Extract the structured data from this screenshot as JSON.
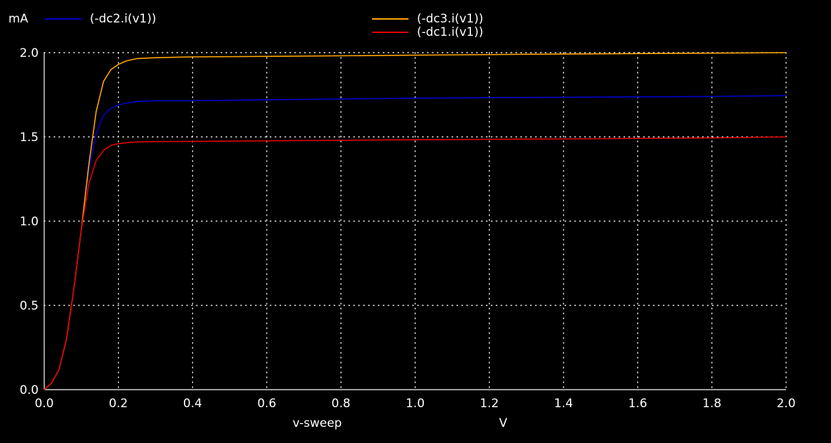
{
  "chart_data": {
    "type": "line",
    "y_unit_label": "mA",
    "xlabel": "v-sweep",
    "x_unit_label": "V",
    "xlim": [
      0.0,
      2.0
    ],
    "ylim": [
      0.0,
      2.0
    ],
    "x_ticks": [
      "0.0",
      "0.2",
      "0.4",
      "0.6",
      "0.8",
      "1.0",
      "1.2",
      "1.4",
      "1.6",
      "1.8",
      "2.0"
    ],
    "y_ticks": [
      "0.0",
      "0.5",
      "1.0",
      "1.5",
      "2.0"
    ],
    "grid": true,
    "background": "#000000",
    "series": [
      {
        "name": "(-dc2.i(v1))",
        "color": "#0000cc",
        "x": [
          0.0,
          0.02,
          0.04,
          0.06,
          0.08,
          0.1,
          0.12,
          0.14,
          0.16,
          0.18,
          0.2,
          0.22,
          0.25,
          0.3,
          0.4,
          0.6,
          1.0,
          1.4,
          1.8,
          2.0
        ],
        "y": [
          0.0,
          0.04,
          0.12,
          0.3,
          0.6,
          0.95,
          1.3,
          1.52,
          1.63,
          1.67,
          1.69,
          1.7,
          1.71,
          1.715,
          1.715,
          1.72,
          1.73,
          1.735,
          1.74,
          1.745
        ]
      },
      {
        "name": "(-dc3.i(v1))",
        "color": "#ffa500",
        "x": [
          0.0,
          0.02,
          0.04,
          0.06,
          0.08,
          0.1,
          0.12,
          0.14,
          0.16,
          0.18,
          0.2,
          0.22,
          0.25,
          0.3,
          0.4,
          0.6,
          1.0,
          1.4,
          1.8,
          2.0
        ],
        "y": [
          0.0,
          0.04,
          0.12,
          0.3,
          0.6,
          0.95,
          1.33,
          1.65,
          1.83,
          1.9,
          1.93,
          1.95,
          1.965,
          1.97,
          1.975,
          1.978,
          1.985,
          1.992,
          1.997,
          2.0
        ]
      },
      {
        "name": "(-dc1.i(v1))",
        "color": "#e00000",
        "x": [
          0.0,
          0.02,
          0.04,
          0.06,
          0.08,
          0.1,
          0.12,
          0.14,
          0.16,
          0.18,
          0.2,
          0.22,
          0.25,
          0.3,
          0.4,
          0.6,
          1.0,
          1.4,
          1.8,
          2.0
        ],
        "y": [
          0.0,
          0.04,
          0.12,
          0.3,
          0.6,
          0.95,
          1.22,
          1.36,
          1.42,
          1.45,
          1.46,
          1.465,
          1.47,
          1.472,
          1.473,
          1.477,
          1.483,
          1.488,
          1.494,
          1.5
        ]
      }
    ]
  }
}
